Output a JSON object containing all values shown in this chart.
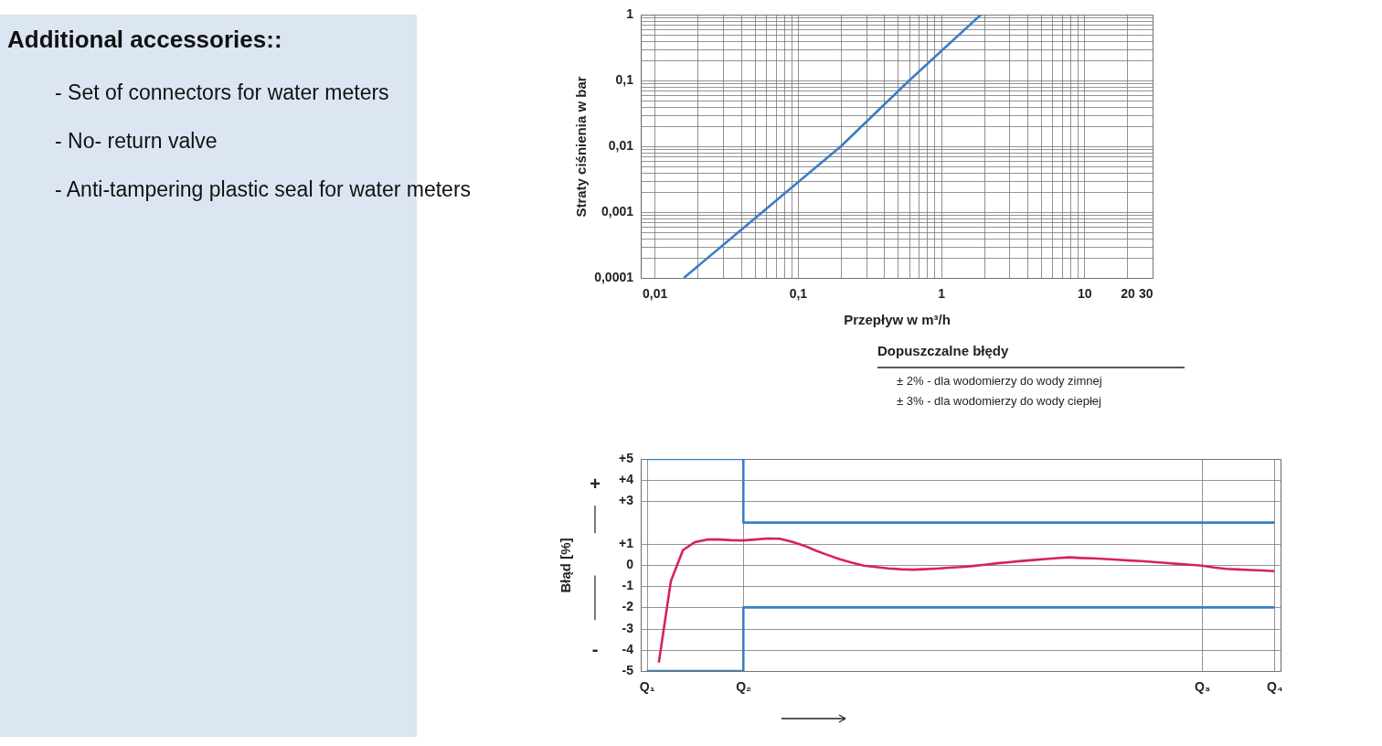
{
  "chart_data": [
    {
      "type": "other",
      "title": "Additional accessories::",
      "annotations": [
        "- Set of connectors for water meters",
        "- No- return valve",
        "- Anti-tampering plastic seal for water meters"
      ]
    },
    {
      "type": "line",
      "xlabel": "Przepływ w m³/h",
      "ylabel": "Straty ciśnienia w bar",
      "log": "xy",
      "grid": true,
      "series": [
        {
          "color": "#3b7dc4",
          "x": [
            0.016,
            0.2,
            0.6,
            1.9
          ],
          "values": [
            0.0001,
            0.01,
            0.1,
            1
          ]
        }
      ],
      "xlim": [
        0.008,
        30
      ],
      "xticks": [
        {
          "value": 0.01,
          "label": "0,01"
        },
        {
          "value": 0.02,
          "label": null
        },
        {
          "value": 0.03,
          "label": null
        },
        {
          "value": 0.04,
          "label": null
        },
        {
          "value": 0.05,
          "label": null
        },
        {
          "value": 0.06,
          "label": null
        },
        {
          "value": 0.07,
          "label": null
        },
        {
          "value": 0.08,
          "label": null
        },
        {
          "value": 0.09,
          "label": null
        },
        {
          "value": 0.1,
          "label": "0,1"
        },
        {
          "value": 0.2,
          "label": null
        },
        {
          "value": 0.3,
          "label": null
        },
        {
          "value": 0.4,
          "label": null
        },
        {
          "value": 0.5,
          "label": null
        },
        {
          "value": 0.6,
          "label": null
        },
        {
          "value": 0.7,
          "label": null
        },
        {
          "value": 0.8,
          "label": null
        },
        {
          "value": 0.9,
          "label": null
        },
        1,
        {
          "value": 2,
          "label": null
        },
        {
          "value": 3,
          "label": null
        },
        {
          "value": 4,
          "label": null
        },
        {
          "value": 5,
          "label": null
        },
        {
          "value": 6,
          "label": null
        },
        {
          "value": 7,
          "label": null
        },
        {
          "value": 8,
          "label": null
        },
        {
          "value": 9,
          "label": null
        },
        10,
        20,
        30
      ],
      "ylim": [
        0.0001,
        1
      ],
      "yticks": [
        {
          "value": 0.0001,
          "label": "0,0001"
        },
        {
          "value": 0.0002,
          "label": null
        },
        {
          "value": 0.0003,
          "label": null
        },
        {
          "value": 0.0004,
          "label": null
        },
        {
          "value": 0.0005,
          "label": null
        },
        {
          "value": 0.0006,
          "label": null
        },
        {
          "value": 0.0007,
          "label": null
        },
        {
          "value": 0.0008,
          "label": null
        },
        {
          "value": 0.0009,
          "label": null
        },
        {
          "value": 0.001,
          "label": "0,001"
        },
        {
          "value": 0.002,
          "label": null
        },
        {
          "value": 0.003,
          "label": null
        },
        {
          "value": 0.004,
          "label": null
        },
        {
          "value": 0.005,
          "label": null
        },
        {
          "value": 0.006,
          "label": null
        },
        {
          "value": 0.007,
          "label": null
        },
        {
          "value": 0.008,
          "label": null
        },
        {
          "value": 0.009,
          "label": null
        },
        {
          "value": 0.01,
          "label": "0,01"
        },
        {
          "value": 0.02,
          "label": null
        },
        {
          "value": 0.03,
          "label": null
        },
        {
          "value": 0.04,
          "label": null
        },
        {
          "value": 0.05,
          "label": null
        },
        {
          "value": 0.06,
          "label": null
        },
        {
          "value": 0.07,
          "label": null
        },
        {
          "value": 0.08,
          "label": null
        },
        {
          "value": 0.09,
          "label": null
        },
        {
          "value": 0.1,
          "label": "0,1"
        },
        {
          "value": 0.2,
          "label": null
        },
        {
          "value": 0.3,
          "label": null
        },
        {
          "value": 0.4,
          "label": null
        },
        {
          "value": 0.5,
          "label": null
        },
        {
          "value": 0.6,
          "label": null
        },
        {
          "value": 0.7,
          "label": null
        },
        {
          "value": 0.8,
          "label": null
        },
        {
          "value": 0.9,
          "label": null
        },
        1
      ]
    },
    {
      "type": "line",
      "ylabel": "Błąd [%]",
      "grid": true,
      "annotations": [
        "Dopuszczalne błędy",
        "± 2% - dla wodomierzy do wody zimnej",
        "± 3% - dla wodomierzy do wody ciepłej",
        "+",
        "-"
      ],
      "categories": [
        "Q₁",
        null,
        null,
        null,
        null,
        null,
        null,
        null,
        "Q₂",
        null,
        null,
        null,
        null,
        null,
        null,
        null,
        null,
        null,
        null,
        null,
        null,
        null,
        null,
        null,
        null,
        null,
        null,
        null,
        null,
        null,
        null,
        null,
        null,
        null,
        null,
        null,
        null,
        null,
        null,
        null,
        null,
        null,
        null,
        null,
        null,
        null,
        "Q₃",
        null,
        null,
        null,
        null,
        null,
        "Q₄"
      ],
      "series": [
        {
          "type": "step",
          "color": "#3a7fc6",
          "values": [
            5,
            5,
            5,
            5,
            5,
            5,
            5,
            5,
            2,
            2,
            2,
            2,
            2,
            2,
            2,
            2,
            2,
            2,
            2,
            2,
            2,
            2,
            2,
            2,
            2,
            2,
            2,
            2,
            2,
            2,
            2,
            2,
            2,
            2,
            2,
            2,
            2,
            2,
            2,
            2,
            2,
            2,
            2,
            2,
            2,
            2,
            2,
            2,
            2,
            2,
            2,
            2,
            2
          ]
        },
        {
          "type": "step",
          "color": "#3a7fc6",
          "values": [
            -5,
            -5,
            -5,
            -5,
            -5,
            -5,
            -5,
            -5,
            -2,
            -2,
            -2,
            -2,
            -2,
            -2,
            -2,
            -2,
            -2,
            -2,
            -2,
            -2,
            -2,
            -2,
            -2,
            -2,
            -2,
            -2,
            -2,
            -2,
            -2,
            -2,
            -2,
            -2,
            -2,
            -2,
            -2,
            -2,
            -2,
            -2,
            -2,
            -2,
            -2,
            -2,
            -2,
            -2,
            -2,
            -2,
            -2,
            -2,
            -2,
            -2,
            -2,
            -2,
            -2
          ]
        },
        {
          "color": "#d6225e",
          "values": [
            null,
            -4.6,
            -0.75,
            0.7,
            1.08,
            1.2,
            1.2,
            1.17,
            1.16,
            1.2,
            1.25,
            1.24,
            1.1,
            0.92,
            0.68,
            0.47,
            0.27,
            0.11,
            -0.03,
            -0.1,
            -0.16,
            -0.2,
            -0.22,
            -0.2,
            -0.17,
            -0.13,
            -0.1,
            -0.05,
            0.01,
            0.08,
            0.13,
            0.19,
            0.23,
            0.28,
            0.32,
            0.36,
            0.33,
            0.31,
            0.28,
            0.25,
            0.21,
            0.18,
            0.14,
            0.1,
            0.05,
            0.01,
            -0.03,
            -0.12,
            -0.18,
            -0.21,
            -0.24,
            -0.26,
            -0.29
          ]
        }
      ],
      "ylim": [
        -5,
        5
      ],
      "yticks": [
        {
          "value": 5,
          "label": "+5"
        },
        {
          "value": 4,
          "label": "+4"
        },
        {
          "value": 3,
          "label": "+3"
        },
        {
          "value": 1,
          "label": "+1"
        },
        0,
        -1,
        -2,
        -3,
        -4,
        -5
      ]
    }
  ]
}
